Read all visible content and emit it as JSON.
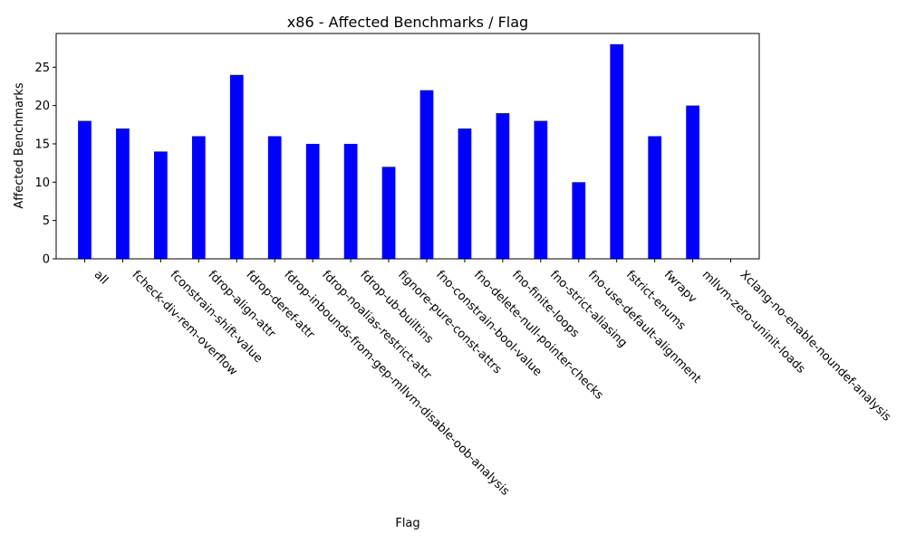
{
  "chart_data": {
    "type": "bar",
    "title": "x86 - Affected Benchmarks / Flag",
    "xlabel": "Flag",
    "ylabel": "Affected Benchmarks",
    "categories": [
      "all",
      "fcheck-div-rem-overflow",
      "fconstrain-shift-value",
      "fdrop-align-attr",
      "fdrop-deref-attr",
      "fdrop-inbounds-from-gep-mllvm-disable-oob-analysis",
      "fdrop-noalias-restrict-attr",
      "fdrop-ub-builtins",
      "fignore-pure-const-attrs",
      "fno-constrain-bool-value",
      "fno-delete-null-pointer-checks",
      "fno-finite-loops",
      "fno-strict-aliasing",
      "fno-use-default-alignment",
      "fstrict-enums",
      "fwrapv",
      "mllvm-zero-uninit-loads",
      "Xclang-no-enable-noundef-analysis"
    ],
    "values": [
      18,
      17,
      14,
      16,
      24,
      16,
      15,
      15,
      12,
      22,
      17,
      19,
      18,
      10,
      28,
      16,
      20,
      0
    ],
    "ylim": [
      0,
      29.4
    ],
    "yticks": [
      0,
      5,
      10,
      15,
      20,
      25
    ],
    "bar_color": "#0000ff",
    "grid": false,
    "legend": "none"
  }
}
